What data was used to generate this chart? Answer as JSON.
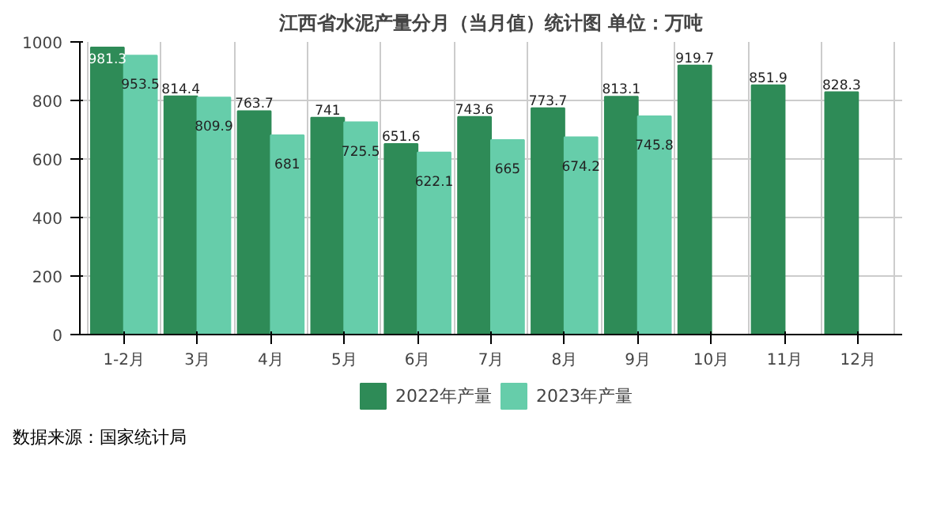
{
  "chart_data": {
    "type": "bar",
    "title": "江西省水泥产量分月（当月值）统计图 单位：万吨",
    "categories": [
      "1-2月",
      "3月",
      "4月",
      "5月",
      "6月",
      "7月",
      "8月",
      "9月",
      "10月",
      "11月",
      "12月"
    ],
    "series": [
      {
        "name": "2022年产量",
        "color": "#2e8b57",
        "values": [
          981.3,
          814.4,
          763.7,
          741,
          651.6,
          743.6,
          773.7,
          813.1,
          919.7,
          851.9,
          828.3
        ]
      },
      {
        "name": "2023年产量",
        "color": "#66cdaa",
        "values": [
          953.5,
          809.9,
          681,
          725.5,
          622.1,
          665,
          674.2,
          745.8,
          null,
          null,
          null
        ]
      }
    ],
    "ylim": [
      0,
      1000
    ],
    "yticks": [
      0,
      200,
      400,
      600,
      800,
      1000
    ],
    "grid": true,
    "legend": "bottom",
    "data_labels": true,
    "annotations": [
      "数据来源：国家统计局"
    ]
  }
}
